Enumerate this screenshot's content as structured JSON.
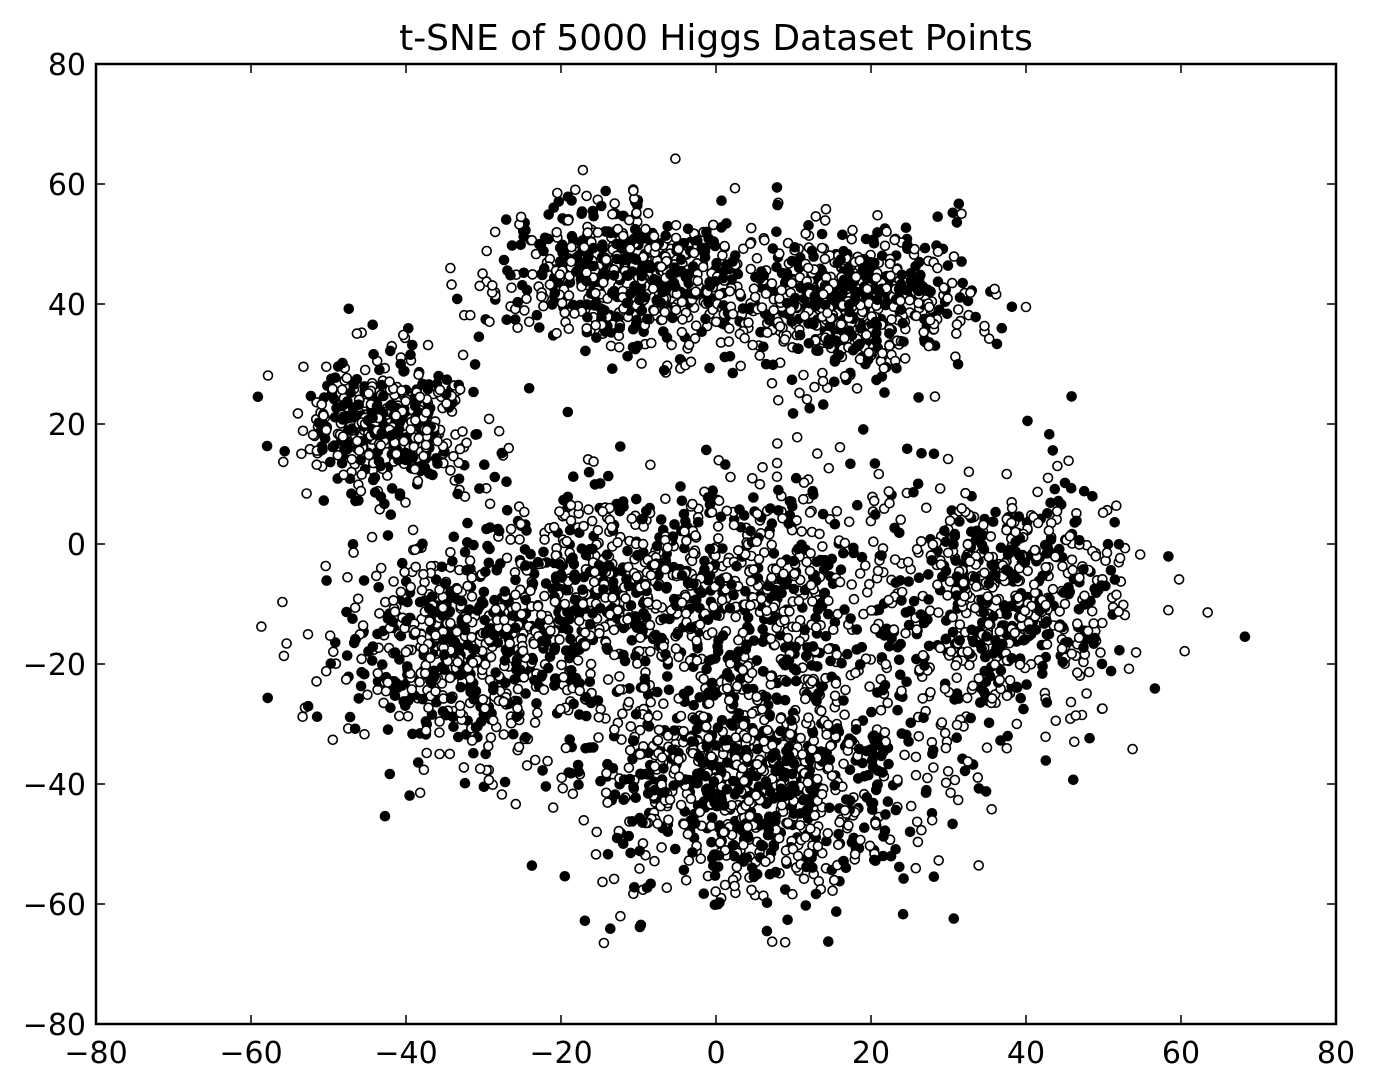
{
  "chart_data": {
    "type": "scatter",
    "title": "t-SNE of 5000 Higgs Dataset Points",
    "xlabel": "",
    "ylabel": "",
    "xlim": [
      -80,
      80
    ],
    "ylim": [
      -80,
      80
    ],
    "x_ticks": [
      -80,
      -60,
      -40,
      -20,
      0,
      20,
      40,
      60,
      80
    ],
    "y_ticks": [
      -80,
      -60,
      -40,
      -20,
      0,
      20,
      40,
      60,
      80
    ],
    "x_tick_labels": [
      "−80",
      "−60",
      "−40",
      "−20",
      "0",
      "20",
      "40",
      "60",
      "80"
    ],
    "y_tick_labels": [
      "−80",
      "−60",
      "−40",
      "−20",
      "0",
      "20",
      "40",
      "60",
      "80"
    ],
    "grid": false,
    "legend": "none",
    "series": [
      {
        "marker": "filled-circle",
        "color": "#000000"
      },
      {
        "marker": "open-circle",
        "color": "#ffffff",
        "edge_color": "#000000"
      }
    ],
    "clusters": [
      {
        "center": [
          -42,
          20
        ],
        "spread": [
          5.5,
          5.5
        ],
        "count": 450
      },
      {
        "center": [
          -12,
          45
        ],
        "spread": [
          8,
          6
        ],
        "count": 650
      },
      {
        "center": [
          17,
          40
        ],
        "spread": [
          8,
          6
        ],
        "count": 650
      },
      {
        "center": [
          -33,
          -18
        ],
        "spread": [
          8,
          9
        ],
        "count": 650
      },
      {
        "center": [
          -12,
          -8
        ],
        "spread": [
          8,
          10
        ],
        "count": 500
      },
      {
        "center": [
          5,
          -40
        ],
        "spread": [
          11,
          9
        ],
        "count": 950
      },
      {
        "center": [
          8,
          -10
        ],
        "spread": [
          9,
          12
        ],
        "count": 500
      },
      {
        "center": [
          38,
          -10
        ],
        "spread": [
          8,
          10
        ],
        "count": 650
      }
    ],
    "point_count": 5000
  }
}
